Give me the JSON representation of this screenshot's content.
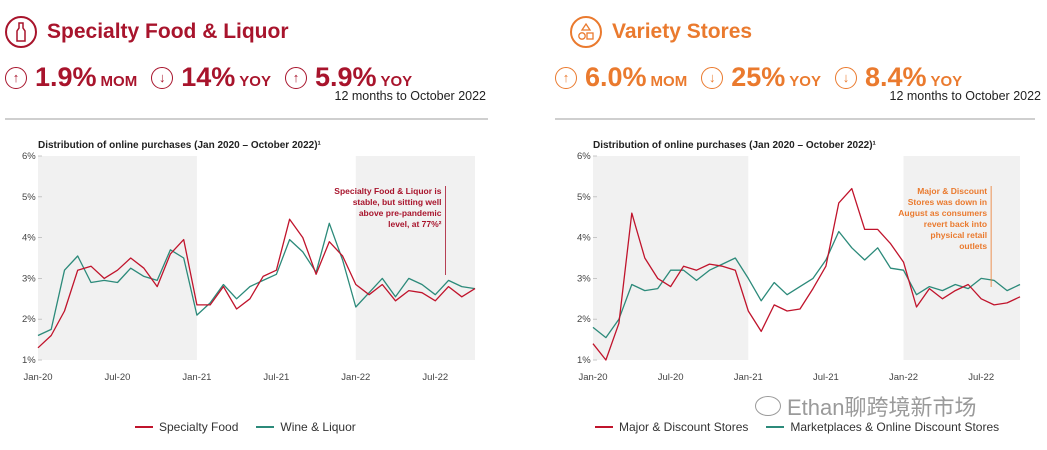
{
  "colors": {
    "left_accent": "#a8142c",
    "right_accent": "#ea7a2e",
    "teal": "#2c8a7a",
    "shade": "#f1f1f1"
  },
  "left": {
    "title": "Specialty Food & Liquor",
    "icon": "bottle-icon",
    "stats": [
      {
        "arrow": "↑",
        "value": "1.9%",
        "unit": "MOM"
      },
      {
        "arrow": "↓",
        "value": "14%",
        "unit": "YOY"
      },
      {
        "arrow": "↑",
        "value": "5.9%",
        "unit": "YOY"
      }
    ],
    "note": "12 months to October 2022",
    "legend": [
      "Specialty Food",
      "Wine & Liquor"
    ]
  },
  "right": {
    "title": "Variety Stores",
    "icon": "shapes-icon",
    "stats": [
      {
        "arrow": "↑",
        "value": "6.0%",
        "unit": "MOM"
      },
      {
        "arrow": "↓",
        "value": "25%",
        "unit": "YOY"
      },
      {
        "arrow": "↓",
        "value": "8.4%",
        "unit": "YOY"
      }
    ],
    "note": "12 months to October 2022",
    "legend": [
      "Major & Discount Stores",
      "Marketplaces & Online Discount Stores"
    ]
  },
  "watermark": "Ethan聊跨境新市场",
  "chart_data": [
    {
      "type": "line",
      "title": "Distribution of online purchases (Jan 2020 – October 2022)¹",
      "ylim": [
        1,
        6
      ],
      "yticks": [
        "1%",
        "2%",
        "3%",
        "4%",
        "5%",
        "6%"
      ],
      "xticks": [
        "Jan-20",
        "Jul-20",
        "Jan-21",
        "Jul-21",
        "Jan-22",
        "Jul-22"
      ],
      "xtick_index": [
        0,
        6,
        12,
        18,
        24,
        30
      ],
      "shaded_ranges": [
        [
          0,
          12
        ],
        [
          24,
          33
        ]
      ],
      "annotation": [
        "Specialty Food & Liquor is",
        "stable, but sitting well",
        "above pre-pandemic",
        "level, at 77%²"
      ],
      "annotation_anchor_index": 31,
      "series": [
        {
          "name": "Specialty Food",
          "color": "#c0142c",
          "values": [
            1.3,
            1.6,
            2.2,
            3.2,
            3.3,
            3.0,
            3.2,
            3.5,
            3.25,
            2.8,
            3.6,
            3.95,
            2.35,
            2.35,
            2.8,
            2.25,
            2.5,
            3.05,
            3.2,
            4.45,
            4.0,
            3.1,
            3.9,
            3.55,
            2.85,
            2.6,
            2.85,
            2.45,
            2.7,
            2.65,
            2.45,
            2.8,
            2.55,
            2.75
          ]
        },
        {
          "name": "Wine & Liquor",
          "color": "#2c8a7a",
          "values": [
            1.6,
            1.75,
            3.2,
            3.55,
            2.9,
            2.95,
            2.9,
            3.25,
            3.05,
            2.95,
            3.7,
            3.5,
            2.1,
            2.4,
            2.85,
            2.5,
            2.8,
            2.95,
            3.1,
            3.95,
            3.65,
            3.15,
            4.35,
            3.45,
            2.3,
            2.65,
            3.0,
            2.55,
            3.0,
            2.85,
            2.6,
            2.95,
            2.8,
            2.75
          ]
        }
      ]
    },
    {
      "type": "line",
      "title": "Distribution of online purchases (Jan 2020 – October 2022)¹",
      "ylim": [
        1,
        6
      ],
      "yticks": [
        "1%",
        "2%",
        "3%",
        "4%",
        "5%",
        "6%"
      ],
      "xticks": [
        "Jan-20",
        "Jul-20",
        "Jan-21",
        "Jul-21",
        "Jan-22",
        "Jul-22"
      ],
      "xtick_index": [
        0,
        6,
        12,
        18,
        24,
        30
      ],
      "shaded_ranges": [
        [
          0,
          12
        ],
        [
          24,
          33
        ]
      ],
      "annotation": [
        "Major & Discount",
        "Stores was down in",
        "August as consumers",
        "revert  back into",
        "physical retail",
        "outlets"
      ],
      "annotation_anchor_index": 31,
      "series": [
        {
          "name": "Major & Discount Stores",
          "color": "#c0142c",
          "values": [
            1.4,
            1.0,
            1.9,
            4.6,
            3.5,
            3.0,
            2.8,
            3.3,
            3.2,
            3.35,
            3.3,
            3.2,
            2.2,
            1.7,
            2.35,
            2.2,
            2.25,
            2.75,
            3.3,
            4.85,
            5.2,
            4.2,
            4.2,
            3.85,
            3.4,
            2.3,
            2.75,
            2.5,
            2.7,
            2.85,
            2.5,
            2.35,
            2.4,
            2.55
          ]
        },
        {
          "name": "Marketplaces & Online Discount Stores",
          "color": "#2c8a7a",
          "values": [
            1.8,
            1.55,
            2.0,
            2.85,
            2.7,
            2.75,
            3.2,
            3.2,
            2.95,
            3.2,
            3.35,
            3.5,
            3.0,
            2.45,
            2.9,
            2.6,
            2.8,
            3.0,
            3.45,
            4.15,
            3.75,
            3.45,
            3.75,
            3.25,
            3.2,
            2.6,
            2.8,
            2.7,
            2.85,
            2.75,
            3.0,
            2.95,
            2.7,
            2.85
          ]
        }
      ]
    }
  ]
}
